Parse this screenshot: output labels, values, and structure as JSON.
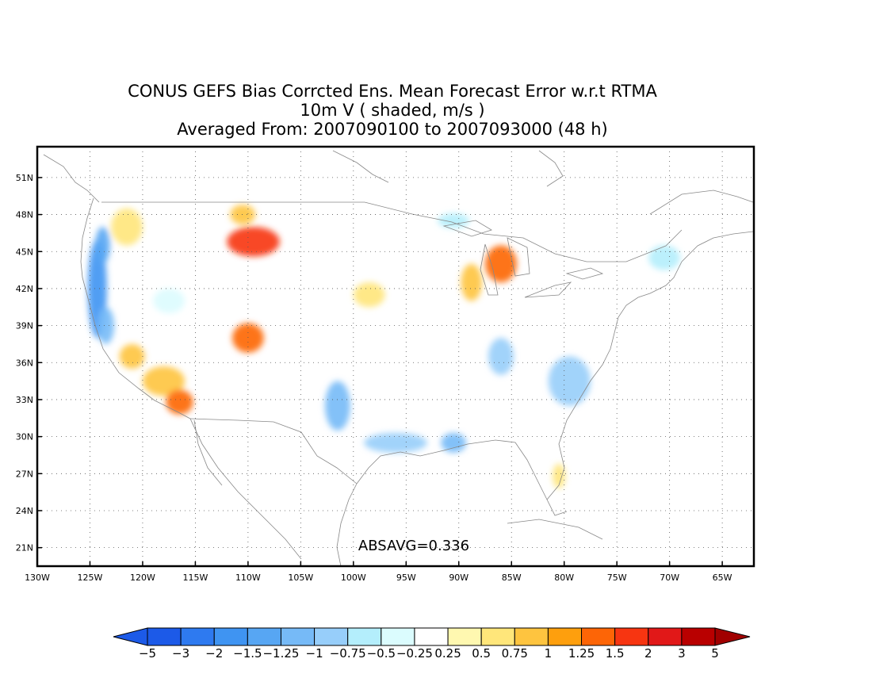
{
  "title": {
    "line1": "CONUS GEFS Bias Corrcted Ens. Mean Forecast Error w.r.t RTMA",
    "line2": "10m V ( shaded, m/s )",
    "line3": "Averaged From: 2007090100 to 2007093000 (48 h)"
  },
  "annotation": "ABSAVG=0.336",
  "map": {
    "lon_range": [
      -130,
      -62
    ],
    "lat_range": [
      19.5,
      53.5
    ],
    "lon_ticks": [
      {
        "value": -130,
        "label": "130W"
      },
      {
        "value": -125,
        "label": "125W"
      },
      {
        "value": -120,
        "label": "120W"
      },
      {
        "value": -115,
        "label": "115W"
      },
      {
        "value": -110,
        "label": "110W"
      },
      {
        "value": -105,
        "label": "105W"
      },
      {
        "value": -100,
        "label": "100W"
      },
      {
        "value": -95,
        "label": "95W"
      },
      {
        "value": -90,
        "label": "90W"
      },
      {
        "value": -85,
        "label": "85W"
      },
      {
        "value": -80,
        "label": "80W"
      },
      {
        "value": -75,
        "label": "75W"
      },
      {
        "value": -70,
        "label": "70W"
      },
      {
        "value": -65,
        "label": "65W"
      }
    ],
    "lat_ticks": [
      {
        "value": 51,
        "label": "51N"
      },
      {
        "value": 48,
        "label": "48N"
      },
      {
        "value": 45,
        "label": "45N"
      },
      {
        "value": 42,
        "label": "42N"
      },
      {
        "value": 39,
        "label": "39N"
      },
      {
        "value": 36,
        "label": "36N"
      },
      {
        "value": 33,
        "label": "33N"
      },
      {
        "value": 30,
        "label": "30N"
      },
      {
        "value": 27,
        "label": "27N"
      },
      {
        "value": 24,
        "label": "24N"
      },
      {
        "value": 21,
        "label": "21N"
      }
    ],
    "grid": true,
    "field_blobs": [
      {
        "lon": -124.3,
        "lat": 42.0,
        "rlon": 0.9,
        "rlat": 4.0,
        "value": -2
      },
      {
        "lon": -123.8,
        "lat": 45.5,
        "rlon": 0.7,
        "rlat": 1.5,
        "value": -1.5
      },
      {
        "lon": -123.5,
        "lat": 39.0,
        "rlon": 0.8,
        "rlat": 1.5,
        "value": -1.25
      },
      {
        "lon": -121.5,
        "lat": 47.0,
        "rlon": 1.5,
        "rlat": 1.5,
        "value": 0.5
      },
      {
        "lon": -121.0,
        "lat": 36.5,
        "rlon": 1.2,
        "rlat": 1.0,
        "value": 0.75
      },
      {
        "lon": -118.0,
        "lat": 34.5,
        "rlon": 2.0,
        "rlat": 1.2,
        "value": 0.75
      },
      {
        "lon": -116.5,
        "lat": 32.8,
        "rlon": 1.3,
        "rlat": 1.0,
        "value": 1.25
      },
      {
        "lon": -109.5,
        "lat": 45.8,
        "rlon": 2.5,
        "rlat": 1.2,
        "value": 1.5
      },
      {
        "lon": -110.5,
        "lat": 48.0,
        "rlon": 1.2,
        "rlat": 0.8,
        "value": 0.75
      },
      {
        "lon": -110.0,
        "lat": 38.0,
        "rlon": 1.5,
        "rlat": 1.2,
        "value": 1.25
      },
      {
        "lon": -101.5,
        "lat": 32.5,
        "rlon": 1.2,
        "rlat": 2.0,
        "value": -1.25
      },
      {
        "lon": -96.0,
        "lat": 29.5,
        "rlon": 3.0,
        "rlat": 0.8,
        "value": -1
      },
      {
        "lon": -90.5,
        "lat": 29.5,
        "rlon": 1.2,
        "rlat": 0.8,
        "value": -1.25
      },
      {
        "lon": -86.0,
        "lat": 44.0,
        "rlon": 1.5,
        "rlat": 1.5,
        "value": 1.25
      },
      {
        "lon": -88.8,
        "lat": 42.5,
        "rlon": 1.0,
        "rlat": 1.5,
        "value": 0.75
      },
      {
        "lon": -86.0,
        "lat": 36.5,
        "rlon": 1.2,
        "rlat": 1.5,
        "value": -1
      },
      {
        "lon": -79.5,
        "lat": 34.5,
        "rlon": 2.0,
        "rlat": 2.0,
        "value": -1
      },
      {
        "lon": -90.5,
        "lat": 47.5,
        "rlon": 1.5,
        "rlat": 0.6,
        "value": -0.75
      },
      {
        "lon": -70.5,
        "lat": 44.5,
        "rlon": 1.5,
        "rlat": 1.0,
        "value": -0.75
      },
      {
        "lon": -80.5,
        "lat": 26.8,
        "rlon": 0.6,
        "rlat": 1.0,
        "value": 0.5
      },
      {
        "lon": -98.5,
        "lat": 41.5,
        "rlon": 1.5,
        "rlat": 1.0,
        "value": 0.5
      },
      {
        "lon": -117.5,
        "lat": 41.0,
        "rlon": 1.5,
        "rlat": 1.0,
        "value": -0.5
      }
    ]
  },
  "colorbar": {
    "colors": [
      "#1c5ae8",
      "#2e7af0",
      "#3f94f2",
      "#57a6f3",
      "#76baf7",
      "#97cefa",
      "#b4eefc",
      "#dbfcfe",
      "#ffffff",
      "#fff8b0",
      "#ffe67a",
      "#fec43f",
      "#fe9f0d",
      "#fd6506",
      "#f73511",
      "#e11818",
      "#b90000"
    ],
    "left_arrow_color": "#1c5ae8",
    "right_arrow_color": "#a10000",
    "labels": [
      "-5",
      "-3",
      "-2",
      "-1.5",
      "-1.25",
      "-1",
      "-0.75",
      "-0.5",
      "-0.25",
      "0.25",
      "0.5",
      "0.75",
      "1",
      "1.25",
      "1.5",
      "2",
      "3",
      "5"
    ],
    "label_texts": [
      "−5",
      "−3",
      "−2",
      "−1.5",
      "−1.25",
      "−1",
      "−0.75",
      "−0.5",
      "−0.25",
      "0.25",
      "0.5",
      "0.75",
      "1",
      "1.25",
      "1.5",
      "2",
      "3",
      "5"
    ]
  }
}
